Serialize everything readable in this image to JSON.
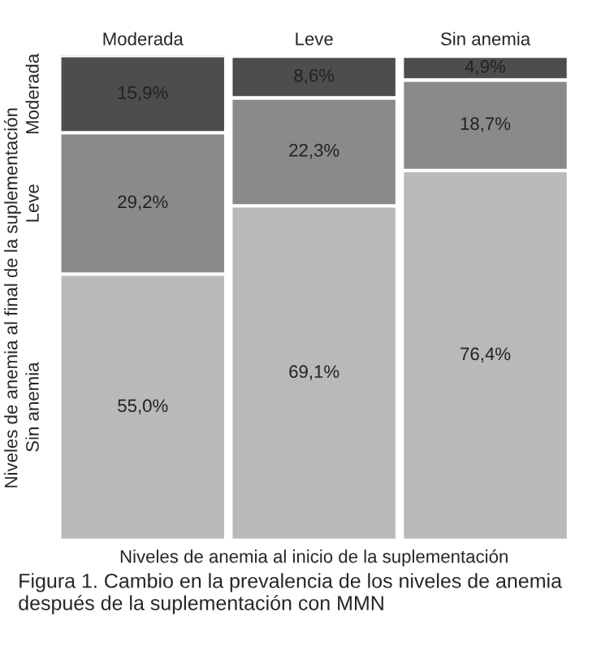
{
  "chart_data": {
    "type": "bar",
    "stacked": true,
    "legend": false,
    "categories": [
      "Moderada",
      "Leve",
      "Sin anemia"
    ],
    "xlabel": "Niveles de anemia al inicio de la suplementación",
    "ylabel": "Niveles de anemia al final de la suplementación",
    "series": [
      {
        "name": "Sin anemia",
        "color": "#b9b9b9",
        "values": [
          55.0,
          69.1,
          76.4
        ],
        "value_labels": [
          "55,0%",
          "69,1%",
          "76,4%"
        ]
      },
      {
        "name": "Leve",
        "color": "#8a8a8a",
        "values": [
          29.2,
          22.3,
          18.7
        ],
        "value_labels": [
          "29,2%",
          "22,3%",
          "18,7%"
        ]
      },
      {
        "name": "Moderada",
        "color": "#4d4d4d",
        "values": [
          15.9,
          8.6,
          4.9
        ],
        "value_labels": [
          "15,9%",
          "8,6%",
          "4,9%"
        ]
      }
    ],
    "annotations": [
      "Figura 1. Cambio en la prevalencia de los niveles de anemia después de la suplementación con MMN"
    ]
  }
}
